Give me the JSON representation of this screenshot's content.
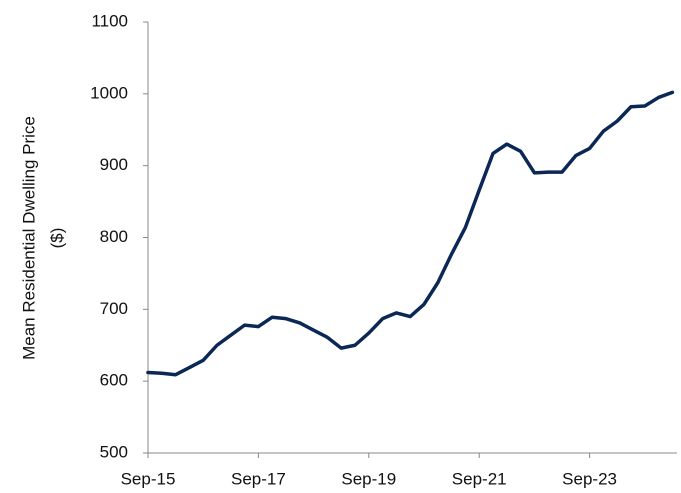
{
  "chart_data": {
    "type": "line",
    "ylabel": [
      "Mean Residential Dwelling Price",
      "($)"
    ],
    "categories": [
      "Sep-15",
      null,
      null,
      null,
      null,
      null,
      null,
      null,
      "Sep-17",
      null,
      null,
      null,
      null,
      null,
      null,
      null,
      "Sep-19",
      null,
      null,
      null,
      null,
      null,
      null,
      null,
      "Sep-21",
      null,
      null,
      null,
      null,
      null,
      null,
      null,
      "Sep-23",
      null,
      null,
      null,
      null,
      null,
      null
    ],
    "series": [
      {
        "name": "Mean Residential Dwelling Price",
        "color": "#0b2756",
        "values": [
          612,
          611,
          609,
          619,
          629,
          650,
          664,
          678,
          676,
          689,
          687,
          681,
          671,
          661,
          646,
          650,
          667,
          687,
          695,
          690,
          707,
          737,
          777,
          814,
          866,
          917,
          930,
          920,
          890,
          891,
          891,
          914,
          924,
          948,
          962,
          982,
          983,
          995,
          1002
        ]
      }
    ],
    "ylim": [
      500,
      1100
    ],
    "yticks": [
      500,
      600,
      700,
      800,
      900,
      1000,
      1100
    ],
    "grid": false
  }
}
